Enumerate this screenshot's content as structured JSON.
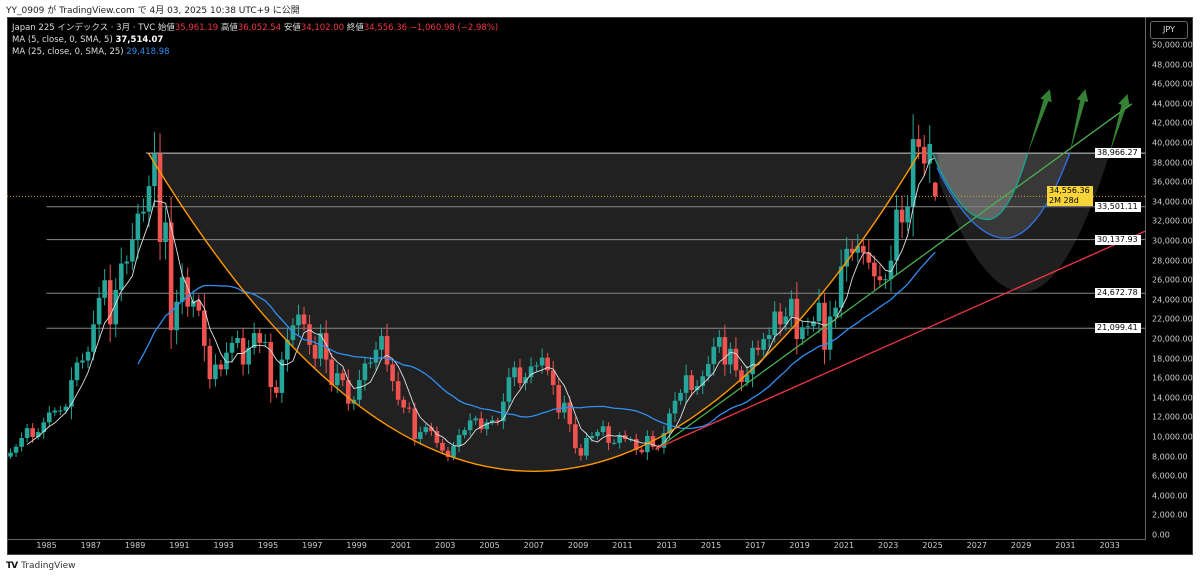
{
  "published": "YY_0909 が TradingView.com で 4月 03, 2025 10:38 UTC+9 に公開",
  "legend": {
    "symbol": "Japan 225 インデックス · 3月 · TVC",
    "open_label": "始値",
    "open": "35,961.19",
    "high_label": "高値",
    "high": "36,052.54",
    "low_label": "安値",
    "low": "34,102.00",
    "close_label": "終値",
    "close": "34,556.36",
    "change": "−1,060.98 (−2.98%)",
    "ma5_label": "MA (5, close, 0, SMA, 5)",
    "ma5_value": "37,514.07",
    "ma25_label": "MA (25, close, 0, SMA, 25)",
    "ma25_value": "29,418.98"
  },
  "currency_button": "JPY",
  "footer_brand": "TradingView",
  "colors": {
    "up": "#26a69a",
    "down": "#ef5350",
    "ma5": "#e0e0e0",
    "ma25": "#2f8ff0",
    "bowl": "#ff9800",
    "trend_green": "#4caf50",
    "trend_red": "#f23645",
    "teal": "#1aa38a",
    "blue": "#2f6fe0",
    "arrow": "#3a8f3a",
    "current": "#f7d53a"
  },
  "price_labels": [
    {
      "value": 38966.27,
      "text": "38,966.27"
    },
    {
      "value": 33501.11,
      "text": "33,501.11"
    },
    {
      "value": 30137.93,
      "text": "30,137.93"
    },
    {
      "value": 24672.78,
      "text": "24,672.78"
    },
    {
      "value": 21099.41,
      "text": "21,099.41"
    }
  ],
  "current_price": {
    "value": 34556.36,
    "text": "34,556.36",
    "countdown": "2M 28d"
  },
  "chart_data": {
    "type": "candlestick",
    "interval": "3M",
    "start": "1983-Q1",
    "closes": [
      8000,
      8400,
      9000,
      9900,
      10900,
      10000,
      10500,
      11500,
      12500,
      12700,
      12700,
      13100,
      15800,
      17600,
      17800,
      18700,
      21500,
      24200,
      26000,
      21500,
      25000,
      27700,
      27900,
      30100,
      32800,
      33000,
      35600,
      38900,
      29900,
      31900,
      20900,
      23800,
      26300,
      23300,
      23900,
      22900,
      19300,
      15900,
      17400,
      16900,
      18600,
      19600,
      20100,
      17400,
      19100,
      20600,
      19600,
      19700,
      15100,
      14500,
      17900,
      19900,
      21400,
      22500,
      21500,
      19400,
      18000,
      20600,
      17900,
      15300,
      16500,
      15800,
      13400,
      13800,
      15800,
      17500,
      17600,
      18900,
      20300,
      17400,
      15700,
      13800,
      13000,
      12900,
      9800,
      10500,
      11000,
      10600,
      9400,
      8600,
      7970,
      9100,
      10200,
      10700,
      11700,
      11900,
      10800,
      11500,
      11700,
      11600,
      13600,
      16100,
      17100,
      15500,
      16100,
      17200,
      17300,
      18100,
      16800,
      15300,
      12500,
      13500,
      11300,
      8860,
      8100,
      9900,
      10100,
      10500,
      11100,
      9400,
      9400,
      10200,
      9800,
      9800,
      8700,
      8450,
      10100,
      9000,
      8900,
      10400,
      12400,
      13700,
      14500,
      16300,
      14800,
      15200,
      16200,
      17450,
      19200,
      20200,
      17400,
      19000,
      16800,
      15600,
      16400,
      19100,
      18900,
      20000,
      20400,
      22800,
      21500,
      22300,
      24100,
      20000,
      21200,
      21300,
      21800,
      23700,
      18900,
      22300,
      23200,
      27400,
      29200,
      28800,
      29500,
      28800,
      27800,
      26400,
      26000,
      26100,
      28000,
      33200,
      31900,
      33500,
      40400,
      39600,
      37900,
      39900,
      34556.36
    ],
    "last_candle": {
      "open": 35961.19,
      "high": 36052.54,
      "low": 34102.0,
      "close": 34556.36
    },
    "moving_averages": [
      {
        "name": "MA (5, close, 0, SMA, 5)",
        "length": 5
      },
      {
        "name": "MA (25, close, 0, SMA, 25)",
        "length": 25
      }
    ],
    "yticks": [
      0,
      2000,
      4000,
      6000,
      8000,
      10000,
      12000,
      14000,
      16000,
      18000,
      20000,
      22000,
      24000,
      26000,
      28000,
      30000,
      32000,
      34000,
      36000,
      38000,
      40000,
      42000,
      44000,
      46000,
      48000,
      50000
    ],
    "ytick_labels": [
      "0.00",
      "2,000.00",
      "4,000.00",
      "6,000.00",
      "8,000.00",
      "10,000.00",
      "12,000.00",
      "14,000.00",
      "16,000.00",
      "18,000.00",
      "20,000.00",
      "22,000.00",
      "24,000.00",
      "26,000.00",
      "28,000.00",
      "30,000.00",
      "32,000.00",
      "34,000.00",
      "36,000.00",
      "38,000.00",
      "40,000.00",
      "42,000.00",
      "44,000.00",
      "46,000.00",
      "48,000.00",
      "50,000.00"
    ],
    "xticks": [
      "1985",
      "1987",
      "1989",
      "1991",
      "1993",
      "1995",
      "1997",
      "1999",
      "2001",
      "2003",
      "2005",
      "2007",
      "2009",
      "2011",
      "2013",
      "2015",
      "2017",
      "2019",
      "2021",
      "2023",
      "2025",
      "2027",
      "2029",
      "2031",
      "2033"
    ],
    "ylim": [
      0,
      50000
    ],
    "drawings": {
      "bowl": {
        "start": [
          1989.6,
          38966.27
        ],
        "bottom": [
          2007.0,
          6500
        ],
        "end": [
          2024.4,
          38966.27
        ]
      },
      "projections": [
        {
          "color": "teal",
          "start": [
            2025.0,
            38966.27
          ],
          "bottom": [
            2027.5,
            32200
          ],
          "end": [
            2029.3,
            38966.27
          ],
          "arrow_to": [
            2030.3,
            45500
          ]
        },
        {
          "color": "blue",
          "start": [
            2025.2,
            37500
          ],
          "bottom": [
            2028.3,
            30300
          ],
          "end": [
            2031.2,
            38966.27
          ],
          "arrow_to": [
            2031.9,
            45500
          ]
        },
        {
          "color": "red",
          "start": [
            2025.3,
            36000
          ],
          "bottom": [
            2029.1,
            24800
          ],
          "end": [
            2033.0,
            38966.27
          ],
          "arrow_to": [
            2033.8,
            45000
          ]
        }
      ],
      "trendlines": [
        {
          "color": "trend_green",
          "from": [
            2012.5,
            8700
          ],
          "to": [
            2034.0,
            44000
          ]
        },
        {
          "color": "trend_red",
          "from": [
            2012.5,
            8800
          ],
          "to": [
            2034.6,
            31000
          ]
        }
      ]
    }
  }
}
